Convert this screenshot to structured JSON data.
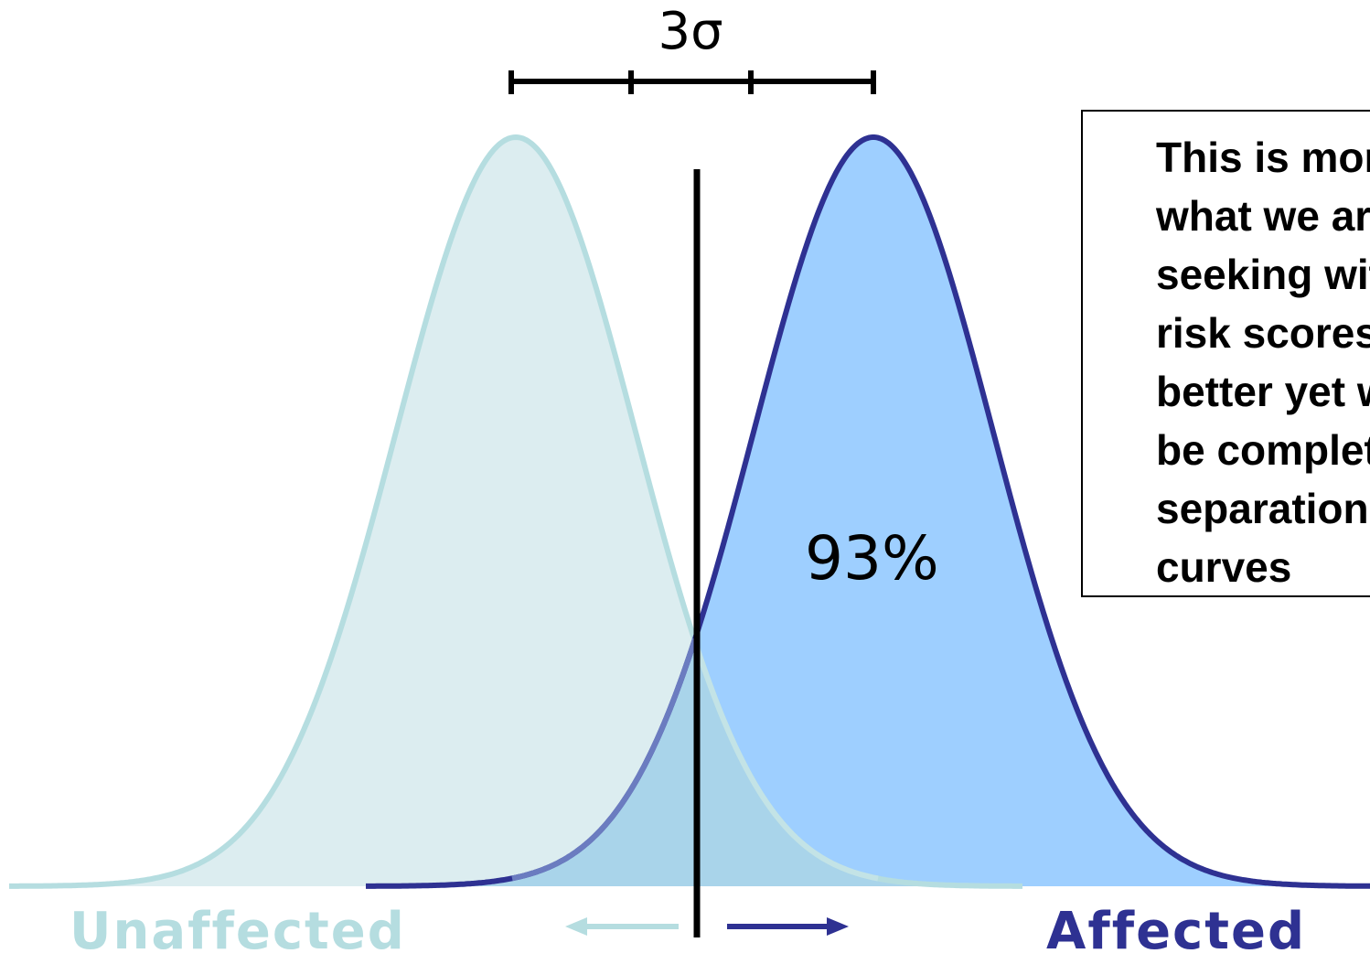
{
  "diagram": {
    "sigma_label": "3σ",
    "percent_label": "93%",
    "note_text": "This is more\nwhat we are\nseeking with\nrisk scores –\nbetter yet would\nbe complete\nseparation of\ncurves",
    "labels": {
      "unaffected": "Unaffected",
      "affected": "Affected"
    },
    "colors": {
      "unaffected_line": "#b5dde0",
      "unaffected_fill": "#dcedf0",
      "affected_line": "#2e3192",
      "affected_fill": "#99ccff",
      "threshold_line": "#000000"
    }
  }
}
